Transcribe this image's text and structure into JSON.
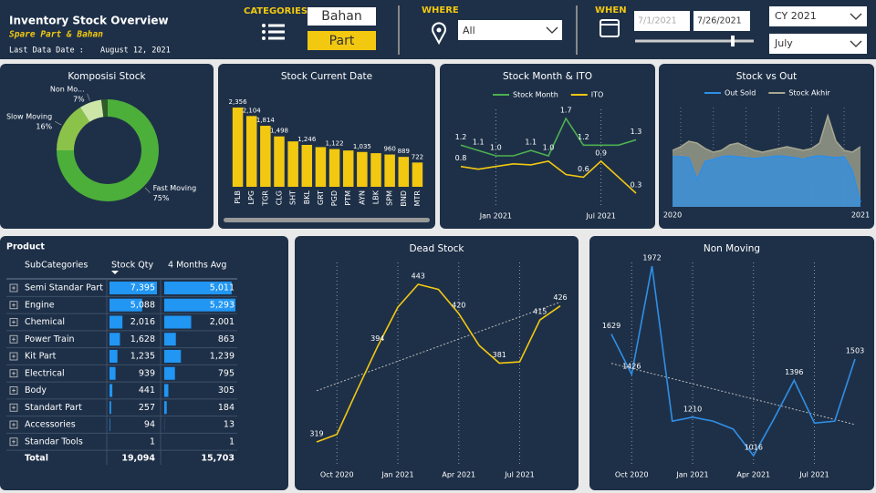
{
  "header": {
    "title": "Inventory Stock Overview",
    "subtitle": "Spare Part & Bahan",
    "last_date_label": "Last Data Date :",
    "last_date": "August 12, 2021"
  },
  "filters": {
    "categories_label": "CATEGORIES",
    "categories": [
      "Bahan",
      "Part"
    ],
    "where_label": "WHERE",
    "where_value": "All",
    "when_label": "WHEN",
    "date_from": "7/1/2021",
    "date_to": "7/26/2021",
    "year": "CY 2021",
    "month": "July"
  },
  "chart_data": [
    {
      "type": "pie",
      "title": "Komposisi Stock",
      "categories": [
        "Fast Moving",
        "Slow Moving",
        "Non Mo...",
        null
      ],
      "values": [
        75,
        16,
        7,
        2
      ],
      "value_labels": [
        "75%",
        "16%",
        "7%",
        null
      ],
      "colors": [
        "#4caf3a",
        "#8bc34a",
        "#cde6a8",
        "#2f5a2a"
      ]
    },
    {
      "type": "bar",
      "title": "Stock Current Date",
      "categories": [
        "PLB",
        "LPG",
        "TGR",
        "CLG",
        "SHT",
        "BKL",
        "GRT",
        "PGD",
        "PTM",
        "AYN",
        "LBK",
        "SPM",
        "BND",
        "MTR"
      ],
      "values": [
        2356,
        2104,
        1814,
        1498,
        1350,
        1246,
        1180,
        1122,
        1080,
        1035,
        1000,
        960,
        889,
        722
      ],
      "value_labels": [
        "2,356",
        "2,104",
        "1,814",
        "1,498",
        null,
        "1,246",
        null,
        "1,122",
        null,
        "1,035",
        null,
        "960",
        "889",
        "722"
      ],
      "color": "#f2c811"
    },
    {
      "type": "line",
      "title": "Stock Month & ITO",
      "categories": [
        null,
        null,
        "Jan 2021",
        null,
        null,
        null,
        null,
        null,
        "Jul 2021",
        null,
        null
      ],
      "series": [
        {
          "name": "Stock Month",
          "color": "#4caf50",
          "values": [
            1.2,
            1.1,
            1.0,
            1.0,
            1.1,
            1.0,
            1.7,
            1.2,
            1.2,
            1.2,
            1.3
          ],
          "value_labels": [
            "1.2",
            "1.1",
            "1.0",
            null,
            "1.1",
            "1.0",
            "1.7",
            "1.2",
            null,
            null,
            "1.3"
          ]
        },
        {
          "name": "ITO",
          "color": "#f2c811",
          "values": [
            0.8,
            0.75,
            0.8,
            0.85,
            0.83,
            0.9,
            0.65,
            0.6,
            0.9,
            0.6,
            0.3
          ],
          "value_labels": [
            "0.8",
            null,
            null,
            null,
            null,
            null,
            null,
            "0.6",
            "0.9",
            null,
            "0.3"
          ]
        }
      ]
    },
    {
      "type": "area",
      "title": "Stock vs Out",
      "categories": [
        "2020",
        null,
        null,
        null,
        null,
        null,
        null,
        null,
        null,
        null,
        null,
        null,
        null,
        null,
        null,
        null,
        null,
        null,
        null,
        null,
        null,
        null,
        null,
        "2021"
      ],
      "series": [
        {
          "name": "Out Sold",
          "color": "#2f8fe6",
          "values": [
            55,
            55,
            54,
            30,
            50,
            52,
            55,
            56,
            55,
            54,
            53,
            54,
            55,
            56,
            55,
            54,
            52,
            55,
            56,
            55,
            54,
            55,
            40,
            5
          ]
        },
        {
          "name": "Stock Akhir",
          "color": "#a8a890",
          "values": [
            62,
            66,
            72,
            70,
            64,
            60,
            62,
            68,
            70,
            66,
            62,
            60,
            62,
            64,
            66,
            64,
            62,
            64,
            70,
            100,
            72,
            62,
            60,
            66
          ]
        }
      ]
    },
    {
      "type": "line",
      "title": "Dead Stock",
      "categories": [
        null,
        "Oct 2020",
        null,
        null,
        "Jan 2021",
        null,
        null,
        "Apr 2021",
        null,
        null,
        "Jul 2021",
        null,
        null
      ],
      "values": [
        319,
        325,
        360,
        394,
        425,
        443,
        439,
        420,
        395,
        381,
        382,
        415,
        426
      ],
      "value_labels": [
        "319",
        null,
        null,
        "394",
        null,
        "443",
        null,
        "420",
        null,
        "381",
        null,
        "415",
        "426"
      ],
      "color": "#f2c811",
      "trendline": true
    },
    {
      "type": "line",
      "title": "Non Moving",
      "categories": [
        null,
        "Oct 2020",
        null,
        null,
        "Jan 2021",
        null,
        null,
        "Apr 2021",
        null,
        null,
        "Jul 2021",
        null,
        null
      ],
      "values": [
        1629,
        1426,
        1972,
        1190,
        1210,
        1190,
        1150,
        1016,
        1200,
        1396,
        1180,
        1190,
        1503
      ],
      "value_labels": [
        "1629",
        "1426",
        "1972",
        null,
        "1210",
        null,
        null,
        "1016",
        null,
        "1396",
        null,
        null,
        "1503"
      ],
      "color": "#2f8fe6",
      "trendline": true
    }
  ],
  "table": {
    "title": "Product",
    "columns": [
      "SubCategories",
      "Stock Qty",
      "4 Months Avg"
    ],
    "rows": [
      [
        "Semi Standar Part",
        {
          "value": 7395,
          "label": "7,395"
        },
        {
          "value": 5011,
          "label": "5,011"
        }
      ],
      [
        "Engine",
        {
          "value": 5088,
          "label": "5,088"
        },
        {
          "value": 5293,
          "label": "5,293"
        }
      ],
      [
        "Chemical",
        {
          "value": 2016,
          "label": "2,016"
        },
        {
          "value": 2001,
          "label": "2,001"
        }
      ],
      [
        "Power Train",
        {
          "value": 1628,
          "label": "1,628"
        },
        863
      ],
      [
        "Kit Part",
        {
          "value": 1235,
          "label": "1,235"
        },
        {
          "value": 1239,
          "label": "1,239"
        }
      ],
      [
        "Electrical",
        939,
        795
      ],
      [
        "Body",
        441,
        305
      ],
      [
        "Standart Part",
        257,
        184
      ],
      [
        "Accessories",
        94,
        13
      ],
      [
        "Standar Tools",
        1,
        1
      ]
    ],
    "total": [
      "Total",
      {
        "value": 19094,
        "label": "19,094"
      },
      {
        "value": 15703,
        "label": "15,703"
      }
    ],
    "color": "#2196f3"
  }
}
